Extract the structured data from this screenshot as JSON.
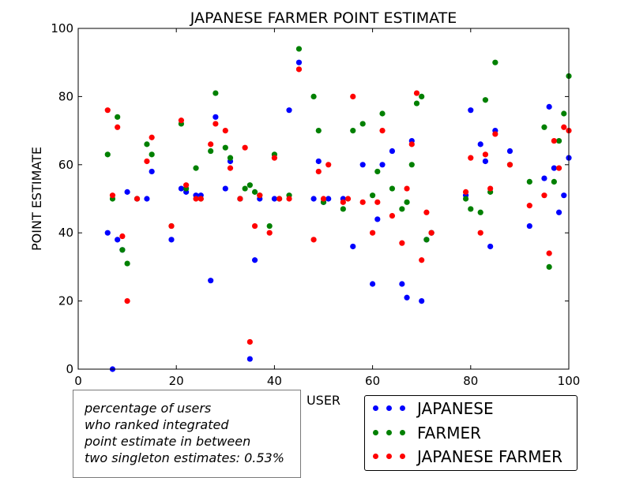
{
  "chart_data": {
    "type": "scatter",
    "title": "JAPANESE FARMER POINT ESTIMATE",
    "xlabel": "USER",
    "ylabel": "POINT ESTIMATE",
    "xlim": [
      0,
      100
    ],
    "ylim": [
      0,
      100
    ],
    "xticks": [
      0,
      20,
      40,
      60,
      80,
      100
    ],
    "yticks": [
      0,
      20,
      40,
      60,
      80,
      100
    ],
    "grid": false,
    "legend_position": "bottom-right",
    "series": [
      {
        "name": "JAPANESE",
        "color": "#0000ff",
        "points": [
          [
            6,
            40
          ],
          [
            7,
            0
          ],
          [
            8,
            38
          ],
          [
            9,
            35
          ],
          [
            10,
            52
          ],
          [
            12,
            50
          ],
          [
            14,
            50
          ],
          [
            15,
            58
          ],
          [
            19,
            38
          ],
          [
            21,
            53
          ],
          [
            22,
            52
          ],
          [
            24,
            51
          ],
          [
            25,
            51
          ],
          [
            27,
            26
          ],
          [
            28,
            74
          ],
          [
            30,
            53
          ],
          [
            31,
            61
          ],
          [
            33,
            50
          ],
          [
            35,
            3
          ],
          [
            36,
            32
          ],
          [
            37,
            50
          ],
          [
            40,
            50
          ],
          [
            43,
            76
          ],
          [
            45,
            90
          ],
          [
            48,
            50
          ],
          [
            49,
            61
          ],
          [
            50,
            49
          ],
          [
            51,
            50
          ],
          [
            54,
            50
          ],
          [
            56,
            36
          ],
          [
            58,
            60
          ],
          [
            60,
            25
          ],
          [
            61,
            44
          ],
          [
            62,
            60
          ],
          [
            64,
            64
          ],
          [
            66,
            25
          ],
          [
            67,
            21
          ],
          [
            68,
            67
          ],
          [
            70,
            20
          ],
          [
            71,
            38
          ],
          [
            72,
            40
          ],
          [
            79,
            51
          ],
          [
            80,
            76
          ],
          [
            82,
            66
          ],
          [
            83,
            61
          ],
          [
            84,
            36
          ],
          [
            85,
            70
          ],
          [
            88,
            64
          ],
          [
            92,
            42
          ],
          [
            95,
            56
          ],
          [
            96,
            77
          ],
          [
            97,
            59
          ],
          [
            98,
            46
          ],
          [
            99,
            51
          ],
          [
            100,
            62
          ]
        ]
      },
      {
        "name": "FARMER",
        "color": "#008000",
        "points": [
          [
            6,
            63
          ],
          [
            7,
            50
          ],
          [
            8,
            74
          ],
          [
            9,
            35
          ],
          [
            10,
            31
          ],
          [
            12,
            50
          ],
          [
            14,
            66
          ],
          [
            15,
            63
          ],
          [
            19,
            42
          ],
          [
            21,
            72
          ],
          [
            22,
            53
          ],
          [
            24,
            59
          ],
          [
            25,
            50
          ],
          [
            27,
            64
          ],
          [
            28,
            81
          ],
          [
            30,
            65
          ],
          [
            31,
            62
          ],
          [
            33,
            50
          ],
          [
            34,
            53
          ],
          [
            35,
            54
          ],
          [
            36,
            52
          ],
          [
            37,
            51
          ],
          [
            39,
            42
          ],
          [
            40,
            63
          ],
          [
            41,
            50
          ],
          [
            43,
            51
          ],
          [
            45,
            94
          ],
          [
            48,
            80
          ],
          [
            49,
            70
          ],
          [
            50,
            49
          ],
          [
            54,
            47
          ],
          [
            56,
            70
          ],
          [
            58,
            72
          ],
          [
            60,
            51
          ],
          [
            61,
            58
          ],
          [
            62,
            75
          ],
          [
            64,
            53
          ],
          [
            66,
            47
          ],
          [
            67,
            49
          ],
          [
            68,
            60
          ],
          [
            69,
            78
          ],
          [
            70,
            80
          ],
          [
            71,
            38
          ],
          [
            72,
            40
          ],
          [
            79,
            50
          ],
          [
            80,
            47
          ],
          [
            82,
            46
          ],
          [
            83,
            79
          ],
          [
            84,
            52
          ],
          [
            85,
            90
          ],
          [
            88,
            60
          ],
          [
            92,
            55
          ],
          [
            95,
            71
          ],
          [
            96,
            30
          ],
          [
            97,
            55
          ],
          [
            98,
            67
          ],
          [
            99,
            75
          ],
          [
            100,
            86
          ]
        ]
      },
      {
        "name": "JAPANESE FARMER",
        "color": "#ff0000",
        "points": [
          [
            6,
            76
          ],
          [
            7,
            51
          ],
          [
            8,
            71
          ],
          [
            9,
            39
          ],
          [
            10,
            20
          ],
          [
            12,
            50
          ],
          [
            14,
            61
          ],
          [
            15,
            68
          ],
          [
            19,
            42
          ],
          [
            21,
            73
          ],
          [
            22,
            54
          ],
          [
            24,
            50
          ],
          [
            25,
            50
          ],
          [
            27,
            66
          ],
          [
            28,
            72
          ],
          [
            30,
            70
          ],
          [
            31,
            59
          ],
          [
            33,
            50
          ],
          [
            34,
            65
          ],
          [
            35,
            8
          ],
          [
            36,
            42
          ],
          [
            37,
            51
          ],
          [
            39,
            40
          ],
          [
            40,
            62
          ],
          [
            41,
            50
          ],
          [
            43,
            50
          ],
          [
            45,
            88
          ],
          [
            48,
            38
          ],
          [
            49,
            58
          ],
          [
            50,
            50
          ],
          [
            51,
            60
          ],
          [
            54,
            49
          ],
          [
            55,
            50
          ],
          [
            56,
            80
          ],
          [
            58,
            49
          ],
          [
            60,
            40
          ],
          [
            61,
            49
          ],
          [
            62,
            70
          ],
          [
            64,
            45
          ],
          [
            66,
            37
          ],
          [
            67,
            53
          ],
          [
            68,
            66
          ],
          [
            69,
            81
          ],
          [
            70,
            32
          ],
          [
            71,
            46
          ],
          [
            72,
            40
          ],
          [
            79,
            52
          ],
          [
            80,
            62
          ],
          [
            82,
            40
          ],
          [
            83,
            63
          ],
          [
            84,
            53
          ],
          [
            85,
            69
          ],
          [
            88,
            60
          ],
          [
            92,
            48
          ],
          [
            95,
            51
          ],
          [
            96,
            34
          ],
          [
            97,
            67
          ],
          [
            98,
            59
          ],
          [
            99,
            71
          ],
          [
            100,
            70
          ]
        ]
      }
    ]
  },
  "note": {
    "lines": [
      "percentage of users",
      "who ranked integrated",
      "point estimate in between",
      "two singleton estimates: 0.53%"
    ]
  }
}
